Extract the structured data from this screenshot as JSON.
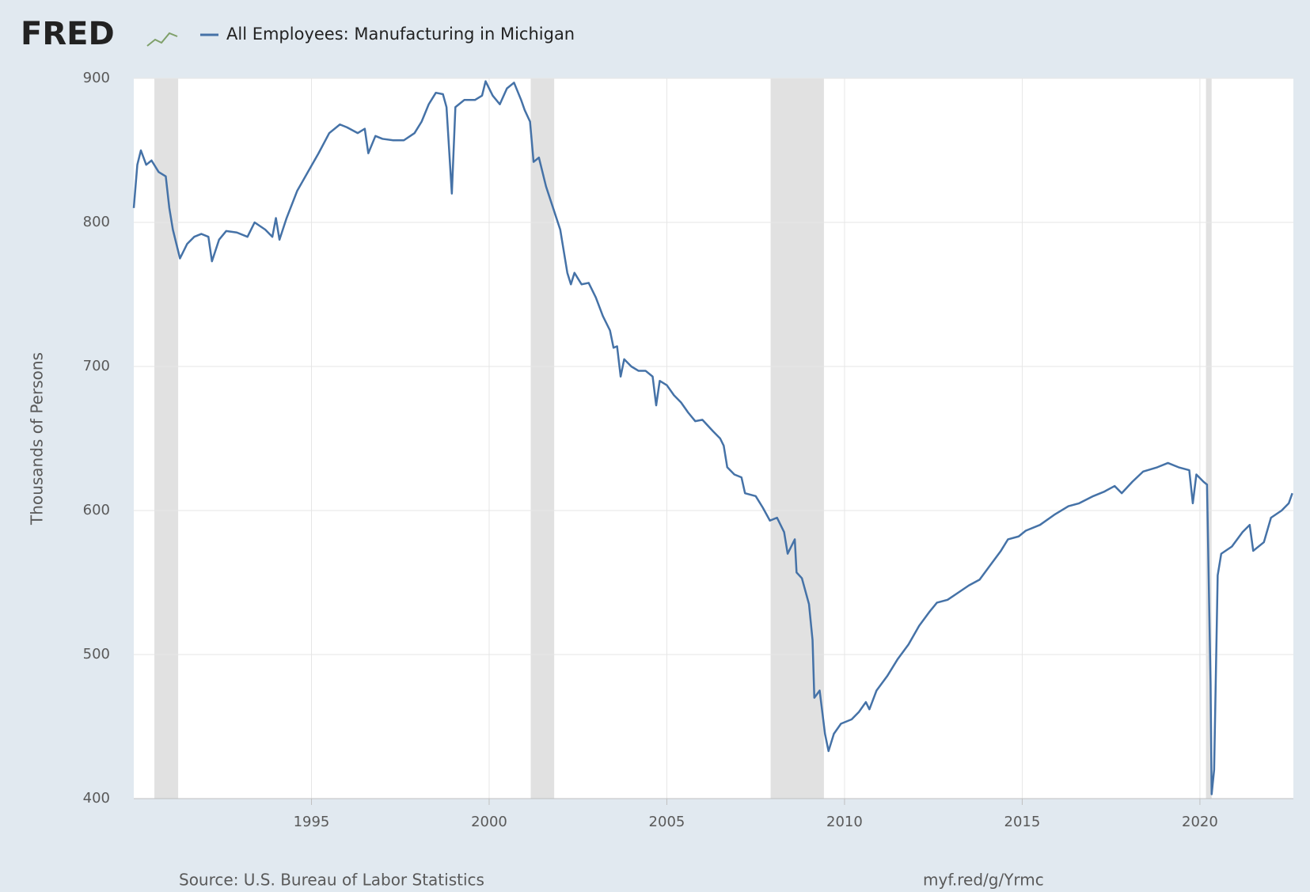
{
  "logo": "FRED",
  "chart_data": {
    "type": "line",
    "y_label": "Thousands of Persons",
    "source": "Source: U.S. Bureau of Labor Statistics",
    "short_url": "myf.red/g/Yrmc",
    "xlim": [
      1990,
      2022.63
    ],
    "xticks": [
      1995,
      2000,
      2005,
      2010,
      2015,
      2020
    ],
    "ylim": [
      400,
      900
    ],
    "yticks": [
      400,
      500,
      600,
      700,
      800,
      900
    ],
    "grid": true,
    "legend": "top-left",
    "recessions": [
      [
        1990.58,
        1991.25
      ],
      [
        2001.17,
        2001.83
      ],
      [
        2007.92,
        2009.42
      ],
      [
        2020.17,
        2020.33
      ]
    ],
    "recession_color": "#e1e1e1",
    "x": [
      1990.0,
      1990.1,
      1990.2,
      1990.35,
      1990.5,
      1990.7,
      1990.9,
      1991.0,
      1991.1,
      1991.2,
      1991.3,
      1991.5,
      1991.7,
      1991.9,
      1992.1,
      1992.2,
      1992.4,
      1992.6,
      1992.9,
      1993.2,
      1993.4,
      1993.7,
      1993.9,
      1994.0,
      1994.1,
      1994.3,
      1994.6,
      1994.9,
      1995.2,
      1995.5,
      1995.8,
      1996.0,
      1996.3,
      1996.5,
      1996.6,
      1996.8,
      1997.0,
      1997.3,
      1997.6,
      1997.9,
      1998.1,
      1998.3,
      1998.5,
      1998.7,
      1998.8,
      1998.95,
      1999.05,
      1999.3,
      1999.6,
      1999.8,
      1999.9,
      2000.1,
      2000.3,
      2000.5,
      2000.7,
      2000.9,
      2001.0,
      2001.15,
      2001.25,
      2001.4,
      2001.6,
      2001.8,
      2002.0,
      2002.2,
      2002.3,
      2002.4,
      2002.6,
      2002.8,
      2003.0,
      2003.2,
      2003.4,
      2003.5,
      2003.6,
      2003.7,
      2003.8,
      2004.0,
      2004.2,
      2004.4,
      2004.6,
      2004.7,
      2004.8,
      2005.0,
      2005.2,
      2005.4,
      2005.6,
      2005.8,
      2006.0,
      2006.3,
      2006.5,
      2006.6,
      2006.7,
      2006.9,
      2007.1,
      2007.2,
      2007.5,
      2007.7,
      2007.9,
      2008.1,
      2008.3,
      2008.4,
      2008.6,
      2008.65,
      2008.8,
      2009.0,
      2009.1,
      2009.15,
      2009.3,
      2009.45,
      2009.55,
      2009.7,
      2009.9,
      2010.2,
      2010.4,
      2010.6,
      2010.7,
      2010.9,
      2011.2,
      2011.5,
      2011.8,
      2012.1,
      2012.4,
      2012.6,
      2012.9,
      2013.2,
      2013.5,
      2013.8,
      2014.1,
      2014.4,
      2014.6,
      2014.9,
      2015.1,
      2015.5,
      2015.9,
      2016.3,
      2016.6,
      2017.0,
      2017.3,
      2017.6,
      2017.8,
      2018.1,
      2018.4,
      2018.8,
      2019.1,
      2019.4,
      2019.7,
      2019.8,
      2019.9,
      2020.1,
      2020.2,
      2020.3,
      2020.33,
      2020.4,
      2020.5,
      2020.6,
      2020.9,
      2021.2,
      2021.4,
      2021.5,
      2021.8,
      2022.0,
      2022.3,
      2022.5,
      2022.6
    ],
    "series": [
      {
        "name": "All Employees: Manufacturing in Michigan",
        "color": "#4572a7",
        "values": [
          810,
          840,
          850,
          840,
          843,
          835,
          832,
          810,
          795,
          785,
          775,
          785,
          790,
          792,
          790,
          773,
          788,
          794,
          793,
          790,
          800,
          795,
          790,
          803,
          788,
          803,
          822,
          835,
          848,
          862,
          868,
          866,
          862,
          865,
          848,
          860,
          858,
          857,
          857,
          862,
          870,
          882,
          890,
          889,
          880,
          820,
          880,
          885,
          885,
          888,
          898,
          888,
          882,
          893,
          897,
          885,
          878,
          870,
          842,
          845,
          825,
          810,
          795,
          765,
          757,
          765,
          757,
          758,
          748,
          735,
          725,
          713,
          714,
          693,
          705,
          700,
          697,
          697,
          693,
          673,
          690,
          687,
          680,
          675,
          668,
          662,
          663,
          655,
          650,
          645,
          630,
          625,
          623,
          612,
          610,
          602,
          593,
          595,
          585,
          570,
          580,
          557,
          553,
          535,
          510,
          470,
          475,
          445,
          433,
          445,
          452,
          455,
          460,
          467,
          462,
          475,
          485,
          497,
          507,
          520,
          530,
          536,
          538,
          543,
          548,
          552,
          562,
          572,
          580,
          582,
          586,
          590,
          597,
          603,
          605,
          610,
          613,
          617,
          612,
          620,
          627,
          630,
          633,
          630,
          628,
          605,
          625,
          620,
          618,
          480,
          403,
          420,
          555,
          570,
          575,
          585,
          590,
          572,
          578,
          595,
          600,
          605,
          612
        ]
      }
    ]
  }
}
